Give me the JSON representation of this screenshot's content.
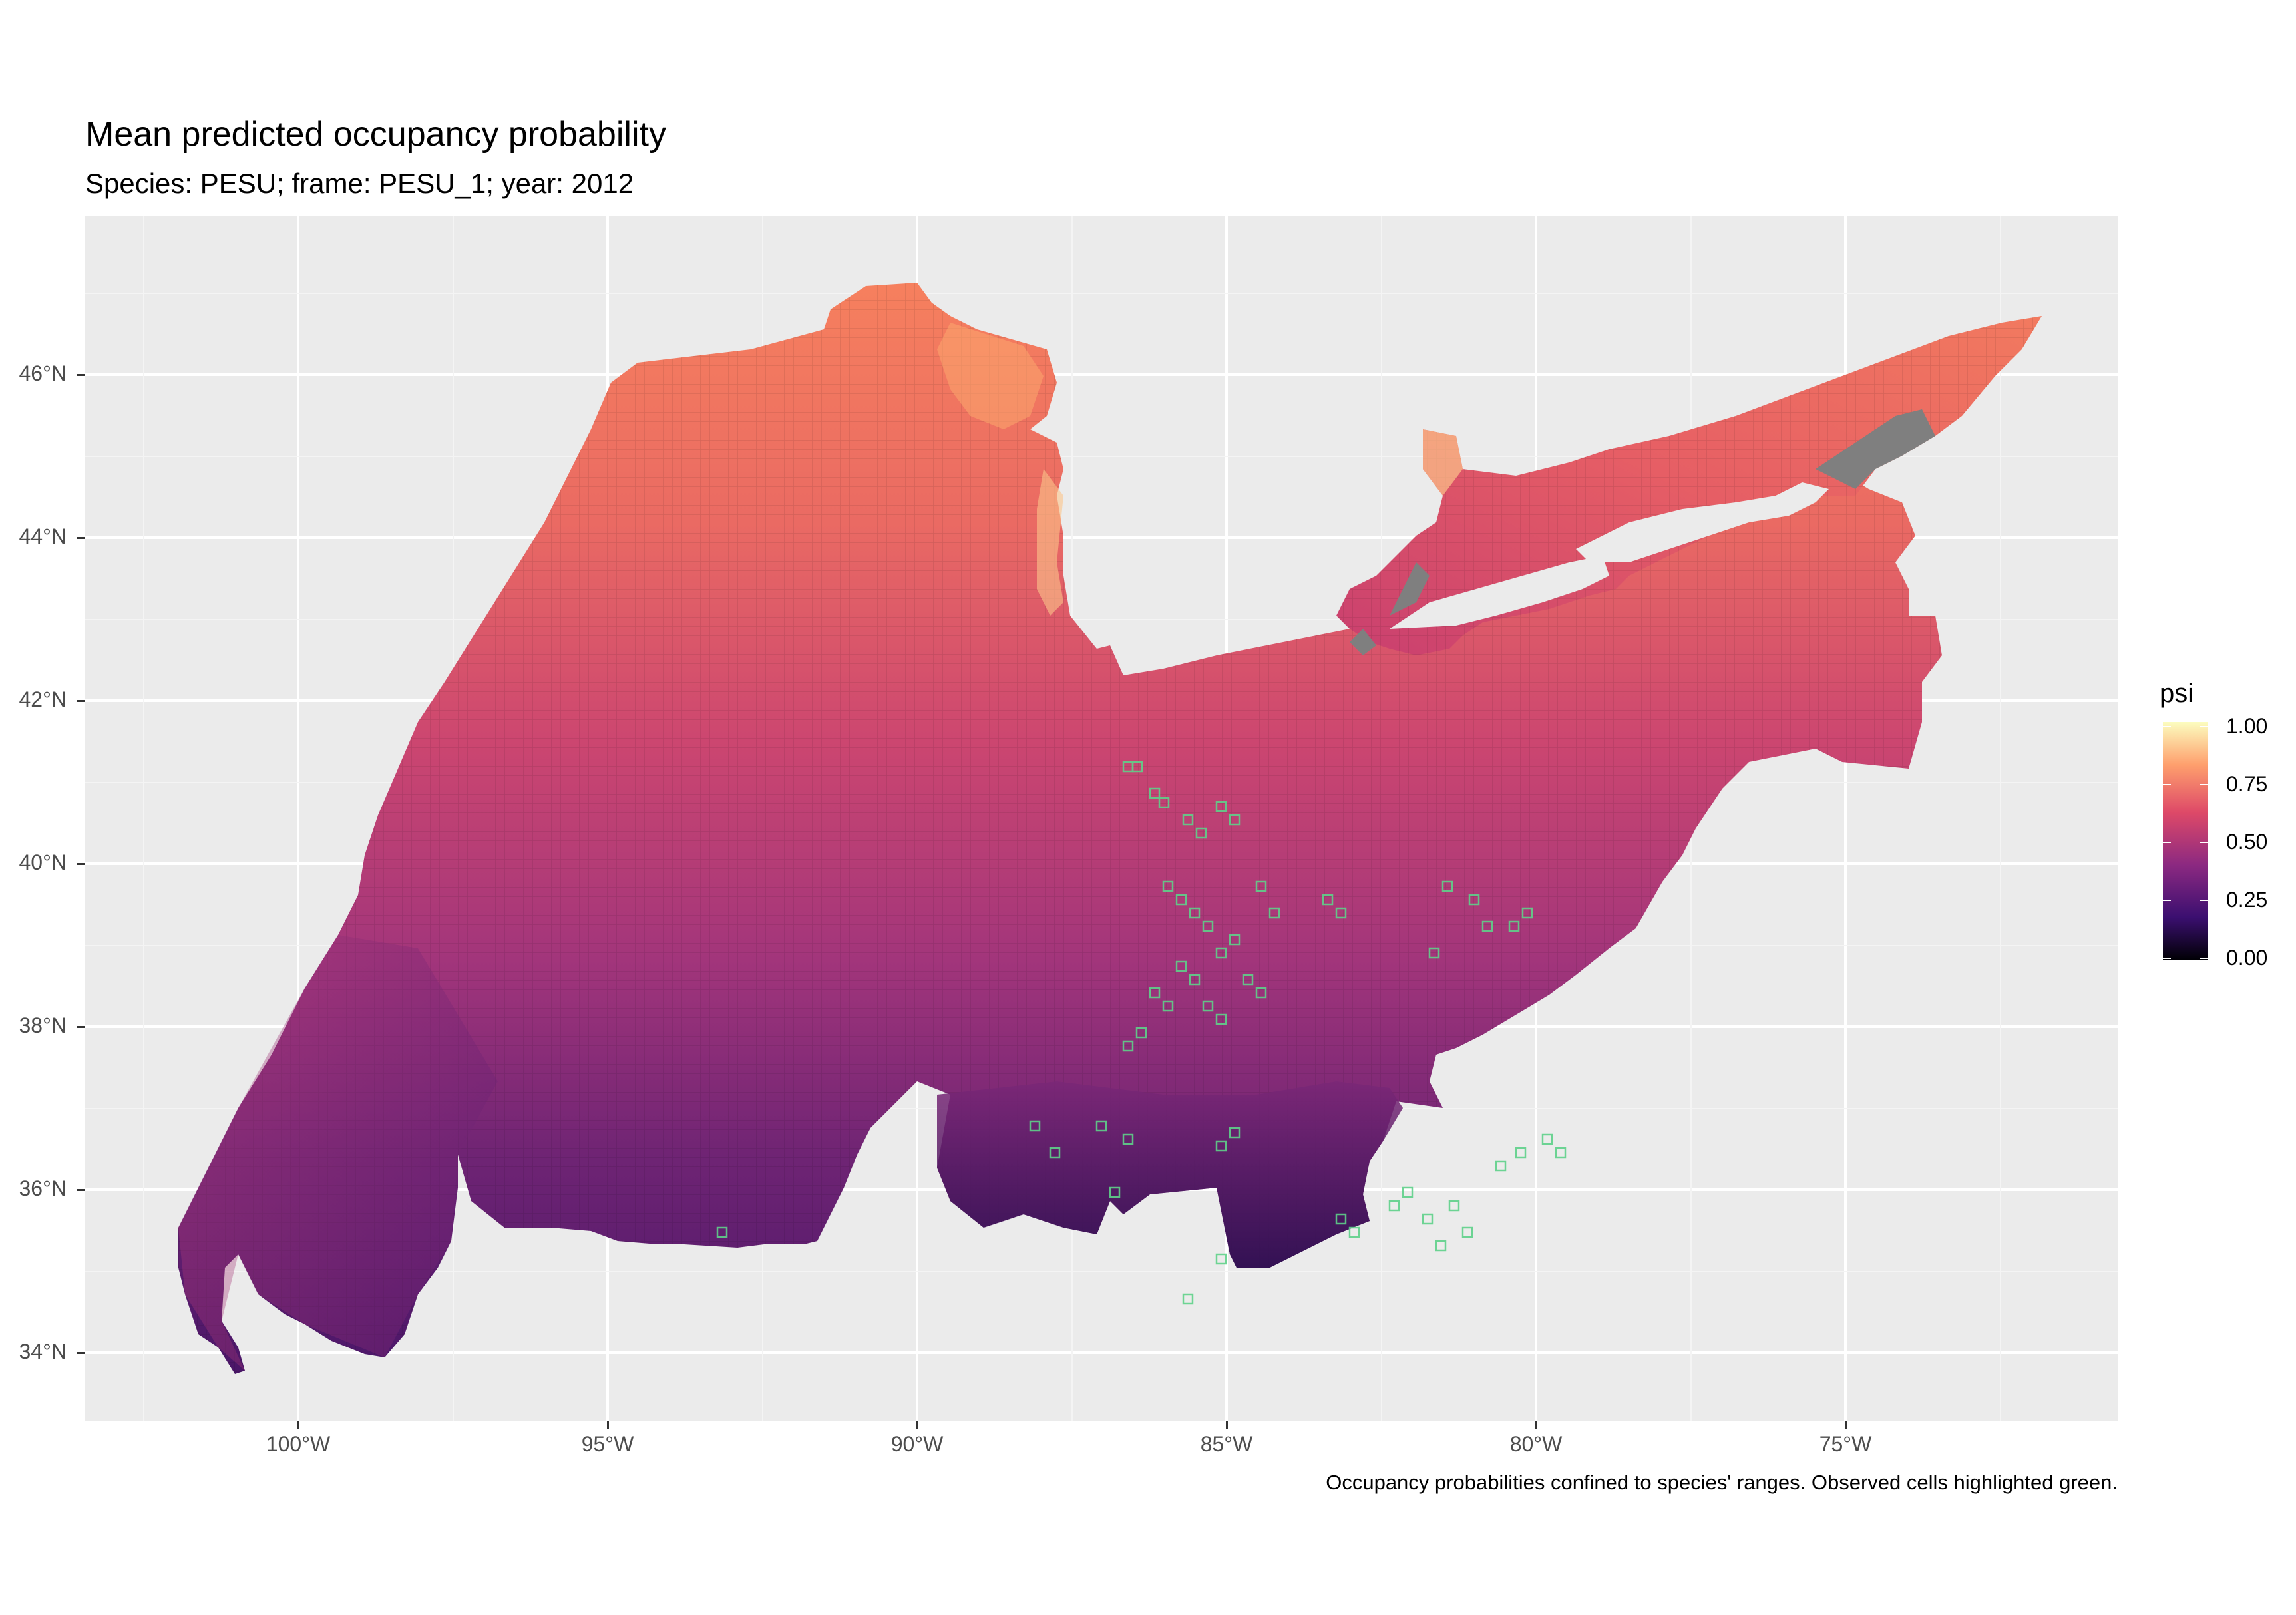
{
  "title": "Mean predicted occupancy probability",
  "subtitle": "Species: PESU; frame: PESU_1; year: 2012",
  "caption": "Occupancy probabilities confined to species' ranges. Observed cells highlighted green.",
  "axes": {
    "y_ticks": [
      "46°N",
      "44°N",
      "42°N",
      "40°N",
      "38°N",
      "36°N",
      "34°N"
    ],
    "x_ticks": [
      "100°W",
      "95°W",
      "90°W",
      "85°W",
      "80°W",
      "75°W"
    ]
  },
  "legend": {
    "title": "psi",
    "labels": [
      "1.00",
      "0.75",
      "0.50",
      "0.25",
      "0.00"
    ]
  },
  "colors": {
    "panel_bg": "#ebebeb",
    "grid": "#ffffff",
    "high": "#fcfdbf",
    "upper": "#fe9f6d",
    "mid": "#de4968",
    "lower": "#8c2981",
    "low": "#3b0f70",
    "zero": "#000004",
    "missing": "#7f7f7f",
    "observed": "#5fd18a"
  },
  "map_data": {
    "scale": "psi 0–1 (magma)",
    "extent": {
      "lon": [
        -103.5,
        -70.6
      ],
      "lat": [
        33.2,
        47.8
      ]
    }
  }
}
